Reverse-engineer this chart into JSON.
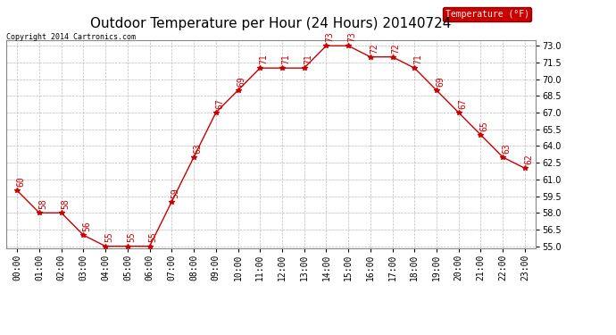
{
  "title": "Outdoor Temperature per Hour (24 Hours) 20140724",
  "copyright_text": "Copyright 2014 Cartronics.com",
  "legend_label": "Temperature (°F)",
  "hours": [
    "00:00",
    "01:00",
    "02:00",
    "03:00",
    "04:00",
    "05:00",
    "06:00",
    "07:00",
    "08:00",
    "09:00",
    "10:00",
    "11:00",
    "12:00",
    "13:00",
    "14:00",
    "15:00",
    "16:00",
    "17:00",
    "18:00",
    "19:00",
    "20:00",
    "21:00",
    "22:00",
    "23:00"
  ],
  "temps": [
    60,
    58,
    58,
    56,
    55,
    55,
    55,
    59,
    63,
    67,
    69,
    71,
    71,
    71,
    73,
    73,
    72,
    72,
    71,
    69,
    67,
    65,
    63,
    62
  ],
  "ylim_min": 55.0,
  "ylim_max": 73.0,
  "yticks": [
    55.0,
    56.5,
    58.0,
    59.5,
    61.0,
    62.5,
    64.0,
    65.5,
    67.0,
    68.5,
    70.0,
    71.5,
    73.0
  ],
  "line_color": "#cc0000",
  "marker_color": "#cc0000",
  "bg_color": "#ffffff",
  "grid_color": "#bbbbbb",
  "title_fontsize": 11,
  "label_fontsize": 7,
  "annotation_fontsize": 7,
  "legend_bg": "#cc0000",
  "legend_fg": "#ffffff"
}
